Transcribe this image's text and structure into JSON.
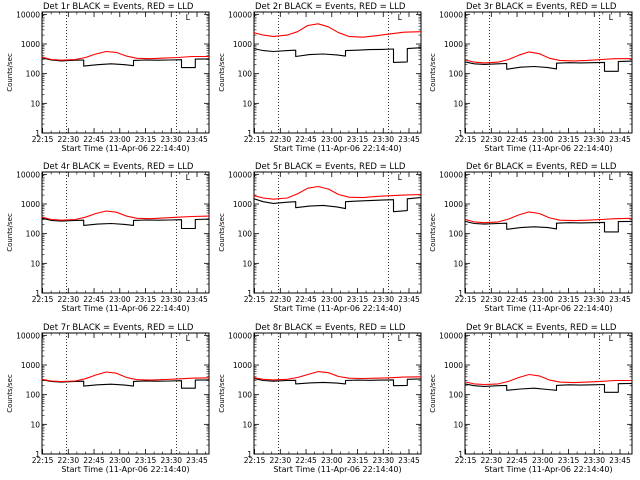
{
  "figure": {
    "x_tick_labels": [
      "22:15",
      "22:30",
      "22:45",
      "23:00",
      "23:15",
      "23:30",
      "23:45"
    ],
    "y_tick_labels": [
      "1",
      "10",
      "100",
      "1000",
      "10000"
    ],
    "ylabel": "Counts/sec",
    "xlabel": "Start Time (11-Apr-06 22:14:40)",
    "corner_marker": "L",
    "colors": {
      "events": "#000000",
      "lld": "#ff0000",
      "axes": "#000000",
      "background": "#ffffff"
    }
  },
  "chart_data": [
    {
      "type": "line",
      "title": "Det 1r BLACK = Events, RED = LLD",
      "xlim": [
        "22:14:40",
        "23:52:00"
      ],
      "ylim": [
        1,
        12000
      ],
      "yscale": "log",
      "dotted_vlines": [
        "22:29",
        "23:33"
      ],
      "series": [
        {
          "color": "#000000",
          "x": [
            "22:14:40",
            "22:20",
            "22:26",
            "22:34",
            "22:39",
            "22:39",
            "22:47",
            "22:55",
            "23:03",
            "23:08",
            "23:08",
            "23:15",
            "23:22",
            "23:29",
            "23:36",
            "23:36",
            "23:44",
            "23:44",
            "23:52"
          ],
          "y": [
            340,
            290,
            270,
            285,
            290,
            180,
            200,
            215,
            200,
            185,
            280,
            290,
            285,
            290,
            295,
            160,
            160,
            310,
            315
          ]
        },
        {
          "color": "#ff0000",
          "x": [
            "22:14:40",
            "22:20",
            "22:26",
            "22:34",
            "22:40",
            "22:46",
            "22:52",
            "22:58",
            "23:04",
            "23:10",
            "23:18",
            "23:26",
            "23:34",
            "23:42",
            "23:52"
          ],
          "y": [
            360,
            300,
            285,
            300,
            350,
            460,
            560,
            520,
            390,
            330,
            320,
            335,
            350,
            380,
            380
          ]
        }
      ]
    },
    {
      "type": "line",
      "title": "Det 2r BLACK = Events, RED = LLD",
      "xlim": [
        "22:14:40",
        "23:52:00"
      ],
      "ylim": [
        1,
        12000
      ],
      "yscale": "log",
      "dotted_vlines": [
        "22:29",
        "23:33"
      ],
      "series": [
        {
          "color": "#000000",
          "x": [
            "22:14:40",
            "22:20",
            "22:26",
            "22:34",
            "22:39",
            "22:39",
            "22:47",
            "22:55",
            "23:03",
            "23:08",
            "23:08",
            "23:15",
            "23:22",
            "23:29",
            "23:36",
            "23:36",
            "23:44",
            "23:44",
            "23:52"
          ],
          "y": [
            700,
            600,
            560,
            600,
            620,
            380,
            440,
            460,
            430,
            390,
            600,
            620,
            650,
            660,
            680,
            240,
            250,
            700,
            750
          ]
        },
        {
          "color": "#ff0000",
          "x": [
            "22:14:40",
            "22:20",
            "22:26",
            "22:34",
            "22:40",
            "22:46",
            "22:52",
            "22:58",
            "23:04",
            "23:10",
            "23:18",
            "23:26",
            "23:34",
            "23:42",
            "23:52"
          ],
          "y": [
            2400,
            2000,
            1800,
            2000,
            2600,
            4200,
            4800,
            3800,
            2400,
            1800,
            1700,
            1900,
            2200,
            2500,
            2600
          ]
        }
      ]
    },
    {
      "type": "line",
      "title": "Det 3r BLACK = Events, RED = LLD",
      "xlim": [
        "22:14:40",
        "23:52:00"
      ],
      "ylim": [
        1,
        12000
      ],
      "yscale": "log",
      "dotted_vlines": [
        "22:29",
        "23:33"
      ],
      "series": [
        {
          "color": "#000000",
          "x": [
            "22:14:40",
            "22:20",
            "22:26",
            "22:34",
            "22:39",
            "22:39",
            "22:47",
            "22:55",
            "23:03",
            "23:08",
            "23:08",
            "23:15",
            "23:22",
            "23:29",
            "23:36",
            "23:36",
            "23:44",
            "23:44",
            "23:52"
          ],
          "y": [
            250,
            215,
            205,
            215,
            220,
            140,
            165,
            175,
            160,
            145,
            225,
            235,
            230,
            235,
            240,
            120,
            120,
            255,
            265
          ]
        },
        {
          "color": "#ff0000",
          "x": [
            "22:14:40",
            "22:20",
            "22:26",
            "22:34",
            "22:40",
            "22:46",
            "22:52",
            "22:58",
            "23:04",
            "23:10",
            "23:18",
            "23:26",
            "23:34",
            "23:42",
            "23:52"
          ],
          "y": [
            290,
            245,
            230,
            245,
            300,
            420,
            540,
            470,
            330,
            280,
            270,
            280,
            300,
            320,
            320
          ]
        }
      ]
    },
    {
      "type": "line",
      "title": "Det 4r BLACK = Events, RED = LLD",
      "xlim": [
        "22:14:40",
        "23:52:00"
      ],
      "ylim": [
        1,
        12000
      ],
      "yscale": "log",
      "dotted_vlines": [
        "22:29",
        "23:33"
      ],
      "series": [
        {
          "color": "#000000",
          "x": [
            "22:14:40",
            "22:20",
            "22:26",
            "22:34",
            "22:39",
            "22:39",
            "22:47",
            "22:55",
            "23:03",
            "23:08",
            "23:08",
            "23:15",
            "23:22",
            "23:29",
            "23:36",
            "23:36",
            "23:44",
            "23:44",
            "23:52"
          ],
          "y": [
            330,
            280,
            265,
            280,
            285,
            190,
            210,
            220,
            205,
            190,
            280,
            290,
            285,
            290,
            295,
            150,
            150,
            300,
            310
          ]
        },
        {
          "color": "#ff0000",
          "x": [
            "22:14:40",
            "22:20",
            "22:26",
            "22:34",
            "22:40",
            "22:46",
            "22:52",
            "22:58",
            "23:04",
            "23:10",
            "23:18",
            "23:26",
            "23:34",
            "23:42",
            "23:52"
          ],
          "y": [
            360,
            300,
            285,
            300,
            360,
            480,
            580,
            530,
            390,
            330,
            320,
            340,
            360,
            380,
            390
          ]
        }
      ]
    },
    {
      "type": "line",
      "title": "Det 5r BLACK = Events, RED = LLD",
      "xlim": [
        "22:14:40",
        "23:52:00"
      ],
      "ylim": [
        1,
        12000
      ],
      "yscale": "log",
      "dotted_vlines": [
        "22:29",
        "23:33"
      ],
      "series": [
        {
          "color": "#000000",
          "x": [
            "22:14:40",
            "22:20",
            "22:26",
            "22:34",
            "22:39",
            "22:39",
            "22:47",
            "22:55",
            "23:03",
            "23:08",
            "23:08",
            "23:15",
            "23:22",
            "23:29",
            "23:36",
            "23:36",
            "23:44",
            "23:44",
            "23:52"
          ],
          "y": [
            1500,
            1200,
            1050,
            1150,
            1200,
            750,
            850,
            900,
            800,
            700,
            1200,
            1250,
            1300,
            1350,
            1400,
            550,
            600,
            1500,
            1650
          ]
        },
        {
          "color": "#ff0000",
          "x": [
            "22:14:40",
            "22:20",
            "22:26",
            "22:34",
            "22:40",
            "22:46",
            "22:52",
            "22:58",
            "23:04",
            "23:10",
            "23:18",
            "23:26",
            "23:34",
            "23:42",
            "23:52"
          ],
          "y": [
            1900,
            1600,
            1450,
            1600,
            2200,
            3400,
            3900,
            3200,
            2100,
            1700,
            1650,
            1800,
            1900,
            2000,
            2100
          ]
        }
      ]
    },
    {
      "type": "line",
      "title": "Det 6r BLACK = Events, RED = LLD",
      "xlim": [
        "22:14:40",
        "23:52:00"
      ],
      "ylim": [
        1,
        12000
      ],
      "yscale": "log",
      "dotted_vlines": [
        "22:29",
        "23:33"
      ],
      "series": [
        {
          "color": "#000000",
          "x": [
            "22:14:40",
            "22:20",
            "22:26",
            "22:34",
            "22:39",
            "22:39",
            "22:47",
            "22:55",
            "23:03",
            "23:08",
            "23:08",
            "23:15",
            "23:22",
            "23:29",
            "23:36",
            "23:36",
            "23:44",
            "23:44",
            "23:52"
          ],
          "y": [
            260,
            220,
            210,
            220,
            225,
            140,
            160,
            170,
            160,
            145,
            225,
            235,
            230,
            235,
            240,
            115,
            115,
            255,
            260
          ]
        },
        {
          "color": "#ff0000",
          "x": [
            "22:14:40",
            "22:20",
            "22:26",
            "22:34",
            "22:40",
            "22:46",
            "22:52",
            "22:58",
            "23:04",
            "23:10",
            "23:18",
            "23:26",
            "23:34",
            "23:42",
            "23:52"
          ],
          "y": [
            300,
            250,
            235,
            250,
            310,
            430,
            540,
            480,
            340,
            285,
            275,
            285,
            300,
            320,
            330
          ]
        }
      ]
    },
    {
      "type": "line",
      "title": "Det 7r BLACK = Events, RED = LLD",
      "xlim": [
        "22:14:40",
        "23:52:00"
      ],
      "ylim": [
        1,
        12000
      ],
      "yscale": "log",
      "dotted_vlines": [
        "22:29",
        "23:33"
      ],
      "series": [
        {
          "color": "#000000",
          "x": [
            "22:14:40",
            "22:20",
            "22:26",
            "22:34",
            "22:39",
            "22:39",
            "22:47",
            "22:55",
            "23:03",
            "23:08",
            "23:08",
            "23:15",
            "23:22",
            "23:29",
            "23:36",
            "23:36",
            "23:44",
            "23:44",
            "23:52"
          ],
          "y": [
            320,
            280,
            265,
            280,
            285,
            195,
            215,
            225,
            210,
            195,
            280,
            290,
            285,
            290,
            295,
            165,
            165,
            310,
            315
          ]
        },
        {
          "color": "#ff0000",
          "x": [
            "22:14:40",
            "22:20",
            "22:26",
            "22:34",
            "22:40",
            "22:46",
            "22:52",
            "22:58",
            "23:04",
            "23:10",
            "23:18",
            "23:26",
            "23:34",
            "23:42",
            "23:52"
          ],
          "y": [
            330,
            290,
            275,
            290,
            345,
            460,
            580,
            530,
            380,
            320,
            310,
            325,
            340,
            360,
            370
          ]
        }
      ]
    },
    {
      "type": "line",
      "title": "Det 8r BLACK = Events, RED = LLD",
      "xlim": [
        "22:14:40",
        "23:52:00"
      ],
      "ylim": [
        1,
        12000
      ],
      "yscale": "log",
      "dotted_vlines": [
        "22:29",
        "23:33"
      ],
      "series": [
        {
          "color": "#000000",
          "x": [
            "22:14:40",
            "22:20",
            "22:26",
            "22:34",
            "22:39",
            "22:39",
            "22:47",
            "22:55",
            "23:03",
            "23:08",
            "23:08",
            "23:15",
            "23:22",
            "23:29",
            "23:36",
            "23:36",
            "23:44",
            "23:44",
            "23:52"
          ],
          "y": [
            350,
            300,
            285,
            300,
            305,
            230,
            250,
            260,
            245,
            230,
            300,
            310,
            305,
            310,
            315,
            200,
            205,
            330,
            340
          ]
        },
        {
          "color": "#ff0000",
          "x": [
            "22:14:40",
            "22:20",
            "22:26",
            "22:34",
            "22:40",
            "22:46",
            "22:52",
            "22:58",
            "23:04",
            "23:10",
            "23:18",
            "23:26",
            "23:34",
            "23:42",
            "23:52"
          ],
          "y": [
            370,
            330,
            315,
            330,
            380,
            480,
            600,
            550,
            410,
            360,
            350,
            360,
            370,
            390,
            400
          ]
        }
      ]
    },
    {
      "type": "line",
      "title": "Det 9r BLACK = Events, RED = LLD",
      "xlim": [
        "22:14:40",
        "23:52:00"
      ],
      "ylim": [
        1,
        12000
      ],
      "yscale": "log",
      "dotted_vlines": [
        "22:29",
        "23:33"
      ],
      "series": [
        {
          "color": "#000000",
          "x": [
            "22:14:40",
            "22:20",
            "22:26",
            "22:34",
            "22:39",
            "22:39",
            "22:47",
            "22:55",
            "23:03",
            "23:08",
            "23:08",
            "23:15",
            "23:22",
            "23:29",
            "23:36",
            "23:36",
            "23:44",
            "23:44",
            "23:52"
          ],
          "y": [
            230,
            200,
            190,
            200,
            205,
            140,
            155,
            165,
            150,
            140,
            205,
            215,
            210,
            215,
            220,
            120,
            120,
            235,
            240
          ]
        },
        {
          "color": "#ff0000",
          "x": [
            "22:14:40",
            "22:20",
            "22:26",
            "22:34",
            "22:40",
            "22:46",
            "22:52",
            "22:58",
            "23:04",
            "23:10",
            "23:18",
            "23:26",
            "23:34",
            "23:42",
            "23:52"
          ],
          "y": [
            270,
            230,
            220,
            230,
            280,
            380,
            480,
            430,
            310,
            265,
            255,
            265,
            280,
            300,
            300
          ]
        }
      ]
    }
  ]
}
